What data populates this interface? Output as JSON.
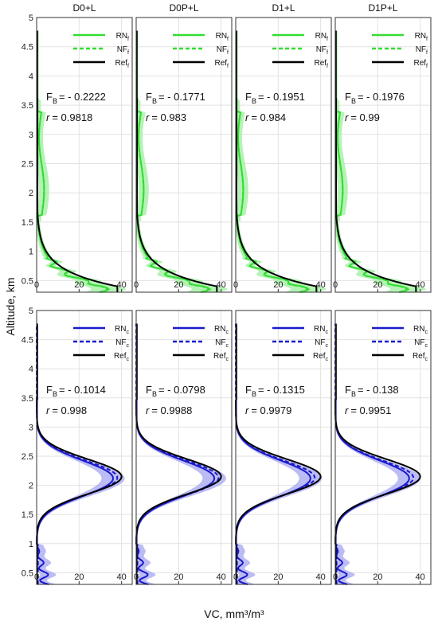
{
  "figure": {
    "ylabel": "Altitude, km",
    "xlabel": "VC, mm³/m³"
  },
  "colors": {
    "fine": "#33dd33",
    "fine_band": "#a8f0a8",
    "coarse": "#1a1acc",
    "coarse_band": "#b0b0f2",
    "ref": "#000000"
  },
  "chart_data": [
    {
      "type": "line",
      "row": "fine",
      "title": "D0+L",
      "xlim": [
        0,
        45
      ],
      "ylim": [
        0.3,
        5
      ],
      "xticks": [
        "0",
        "20",
        "40"
      ],
      "yticks": [
        "0.5",
        "1",
        "1.5",
        "2",
        "2.5",
        "3",
        "3.5",
        "4",
        "4.5",
        "5"
      ],
      "legend": [
        "RNf",
        "NFf",
        "Reff"
      ],
      "legend_labels": [
        {
          "main": "RN",
          "sub": "f"
        },
        {
          "main": "NF",
          "sub": "f"
        },
        {
          "main": "Ref",
          "sub": "f"
        }
      ],
      "fb_label": "F",
      "fb_sub": "B",
      "fb_value": "= - 0.2222",
      "r_label": "r",
      "r_value": "= 0.9818",
      "profile": {
        "ref_peak": 38,
        "model_ratio": 0.83
      }
    },
    {
      "type": "line",
      "row": "fine",
      "title": "D0P+L",
      "xlim": [
        0,
        45
      ],
      "ylim": [
        0.3,
        5
      ],
      "xticks": [
        "0",
        "20",
        "40"
      ],
      "yticks": [],
      "legend": [
        "RNf",
        "NFf",
        "Reff"
      ],
      "legend_labels": [
        {
          "main": "RN",
          "sub": "f"
        },
        {
          "main": "NF",
          "sub": "f"
        },
        {
          "main": "Ref",
          "sub": "f"
        }
      ],
      "fb_label": "F",
      "fb_sub": "B",
      "fb_value": "= - 0.1771",
      "r_label": "r",
      "r_value": "= 0.983",
      "profile": {
        "ref_peak": 38,
        "model_ratio": 0.85
      }
    },
    {
      "type": "line",
      "row": "fine",
      "title": "D1+L",
      "xlim": [
        0,
        45
      ],
      "ylim": [
        0.3,
        5
      ],
      "xticks": [
        "0",
        "20",
        "40"
      ],
      "yticks": [],
      "legend": [
        "RNf",
        "NFf",
        "Reff"
      ],
      "legend_labels": [
        {
          "main": "RN",
          "sub": "f"
        },
        {
          "main": "NF",
          "sub": "f"
        },
        {
          "main": "Ref",
          "sub": "f"
        }
      ],
      "fb_label": "F",
      "fb_sub": "B",
      "fb_value": "= - 0.1951",
      "r_label": "r",
      "r_value": "= 0.984",
      "profile": {
        "ref_peak": 38,
        "model_ratio": 0.84
      }
    },
    {
      "type": "line",
      "row": "fine",
      "title": "D1P+L",
      "xlim": [
        0,
        45
      ],
      "ylim": [
        0.3,
        5
      ],
      "xticks": [
        "0",
        "20",
        "40"
      ],
      "yticks": [],
      "legend": [
        "RNf",
        "NFf",
        "Reff"
      ],
      "legend_labels": [
        {
          "main": "RN",
          "sub": "f"
        },
        {
          "main": "NF",
          "sub": "f"
        },
        {
          "main": "Ref",
          "sub": "f"
        }
      ],
      "fb_label": "F",
      "fb_sub": "B",
      "fb_value": "= - 0.1976",
      "r_label": "r",
      "r_value": "= 0.99",
      "profile": {
        "ref_peak": 38,
        "model_ratio": 0.84
      }
    },
    {
      "type": "line",
      "row": "coarse",
      "title": "",
      "xlim": [
        0,
        45
      ],
      "ylim": [
        0.3,
        5
      ],
      "xticks": [
        "0",
        "20",
        "40"
      ],
      "yticks": [
        "0.5",
        "1",
        "1.5",
        "2",
        "2.5",
        "3",
        "3.5",
        "4",
        "4.5",
        "5"
      ],
      "legend": [
        "RNc",
        "NFc",
        "Refc"
      ],
      "legend_labels": [
        {
          "main": "RN",
          "sub": "c"
        },
        {
          "main": "NF",
          "sub": "c"
        },
        {
          "main": "Ref",
          "sub": "c"
        }
      ],
      "fb_label": "F",
      "fb_sub": "B",
      "fb_value": "= - 0.1014",
      "r_label": "r",
      "r_value": "= 0.998",
      "profile": {
        "ref_peak": 40,
        "model_ratio": 0.9
      }
    },
    {
      "type": "line",
      "row": "coarse",
      "title": "",
      "xlim": [
        0,
        45
      ],
      "ylim": [
        0.3,
        5
      ],
      "xticks": [
        "0",
        "20",
        "40"
      ],
      "yticks": [],
      "legend": [
        "RNc",
        "NFc",
        "Refc"
      ],
      "legend_labels": [
        {
          "main": "RN",
          "sub": "c"
        },
        {
          "main": "NF",
          "sub": "c"
        },
        {
          "main": "Ref",
          "sub": "c"
        }
      ],
      "fb_label": "F",
      "fb_sub": "B",
      "fb_value": "= - 0.0798",
      "r_label": "r",
      "r_value": "= 0.9988",
      "profile": {
        "ref_peak": 40,
        "model_ratio": 0.92
      }
    },
    {
      "type": "line",
      "row": "coarse",
      "title": "",
      "xlim": [
        0,
        45
      ],
      "ylim": [
        0.3,
        5
      ],
      "xticks": [
        "0",
        "20",
        "40"
      ],
      "yticks": [],
      "legend": [
        "RNc",
        "NFc",
        "Refc"
      ],
      "legend_labels": [
        {
          "main": "RN",
          "sub": "c"
        },
        {
          "main": "NF",
          "sub": "c"
        },
        {
          "main": "Ref",
          "sub": "c"
        }
      ],
      "fb_label": "F",
      "fb_sub": "B",
      "fb_value": "= - 0.1315",
      "r_label": "r",
      "r_value": "= 0.9979",
      "profile": {
        "ref_peak": 40,
        "model_ratio": 0.88
      }
    },
    {
      "type": "line",
      "row": "coarse",
      "title": "",
      "xlim": [
        0,
        45
      ],
      "ylim": [
        0.3,
        5
      ],
      "xticks": [
        "0",
        "20",
        "40"
      ],
      "yticks": [],
      "legend": [
        "RNc",
        "NFc",
        "Refc"
      ],
      "legend_labels": [
        {
          "main": "RN",
          "sub": "c"
        },
        {
          "main": "NF",
          "sub": "c"
        },
        {
          "main": "Ref",
          "sub": "c"
        }
      ],
      "fb_label": "F",
      "fb_sub": "B",
      "fb_value": "= - 0.138",
      "r_label": "r",
      "r_value": "= 0.9951",
      "profile": {
        "ref_peak": 40,
        "model_ratio": 0.87
      }
    }
  ]
}
